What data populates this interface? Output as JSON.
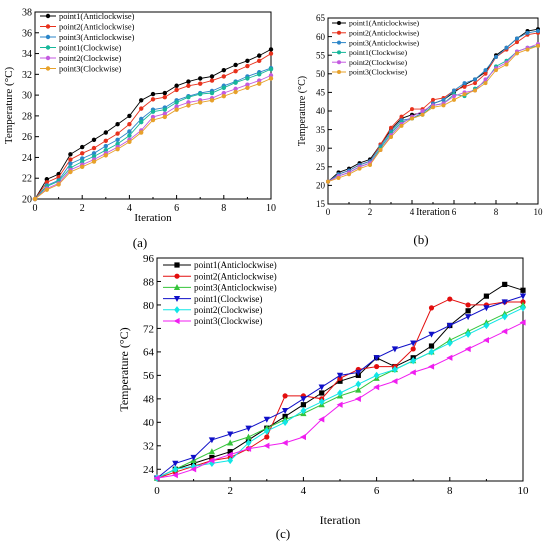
{
  "colors": {
    "s1": "#000000",
    "s2": "#e8311c",
    "s3": "#2b86c9",
    "s4": "#16b79a",
    "s5": "#c45ae0",
    "s6": "#e7a12a",
    "c_s1": "#000000",
    "c_s2": "#e30e0e",
    "c_s3": "#35c43a",
    "c_s4": "#1010c8",
    "c_s5": "#11e6e6",
    "c_s6": "#f01ef0"
  },
  "chart_data": [
    {
      "panel_label": "(a)",
      "type": "line",
      "xlabel": "Iteration",
      "ylabel": "Temperature (°C)",
      "xlim": [
        0,
        10
      ],
      "ylim": [
        20,
        38
      ],
      "xticks": [
        0,
        2,
        4,
        6,
        8,
        10
      ],
      "yticks": [
        20,
        22,
        24,
        26,
        28,
        30,
        32,
        34,
        36,
        38
      ],
      "grid": false,
      "legend_position": "top-left",
      "x": [
        0,
        0.5,
        1,
        1.5,
        2,
        2.5,
        3,
        3.5,
        4,
        4.5,
        5,
        5.5,
        6,
        6.5,
        7,
        7.5,
        8,
        8.5,
        9,
        9.5,
        10
      ],
      "series": [
        {
          "name": "point1(Anticlockwise)",
          "values": [
            20.0,
            21.9,
            22.4,
            24.3,
            25.0,
            25.7,
            26.4,
            27.2,
            28.0,
            29.5,
            30.1,
            30.2,
            30.9,
            31.3,
            31.6,
            31.8,
            32.4,
            32.9,
            33.3,
            33.8,
            34.4
          ]
        },
        {
          "name": "point2(Anticlockwise)",
          "values": [
            20.0,
            21.6,
            22.1,
            23.8,
            24.4,
            24.9,
            25.6,
            26.3,
            27.2,
            28.7,
            29.6,
            29.8,
            30.5,
            30.9,
            31.1,
            31.4,
            31.8,
            32.3,
            32.8,
            33.3,
            34.0
          ]
        },
        {
          "name": "point3(Anticlockwise)",
          "values": [
            20.0,
            21.3,
            21.8,
            23.4,
            23.9,
            24.4,
            25.1,
            25.7,
            26.5,
            27.7,
            28.6,
            28.8,
            29.5,
            29.9,
            30.2,
            30.4,
            30.9,
            31.3,
            31.8,
            32.2,
            32.6
          ]
        },
        {
          "name": "point1(Clockwise)",
          "values": [
            20.0,
            21.2,
            21.7,
            23.0,
            23.6,
            24.1,
            24.7,
            25.3,
            26.1,
            27.4,
            28.4,
            28.6,
            29.3,
            29.8,
            30.1,
            30.2,
            30.7,
            31.2,
            31.6,
            32.0,
            32.5
          ]
        },
        {
          "name": "point2(Clockwise)",
          "values": [
            20.0,
            21.0,
            21.5,
            22.8,
            23.3,
            23.8,
            24.4,
            25.0,
            25.7,
            26.6,
            27.9,
            28.2,
            28.9,
            29.3,
            29.5,
            29.7,
            30.2,
            30.6,
            31.0,
            31.4,
            31.9
          ]
        },
        {
          "name": "point3(Clockwise)",
          "values": [
            20.0,
            20.9,
            21.4,
            22.6,
            23.1,
            23.6,
            24.2,
            24.8,
            25.5,
            26.4,
            27.6,
            27.9,
            28.6,
            29.0,
            29.3,
            29.5,
            29.9,
            30.3,
            30.7,
            31.1,
            31.6
          ]
        }
      ]
    },
    {
      "panel_label": "(b)",
      "type": "line",
      "xlabel": "Iteration",
      "ylabel": "Temperature (°C)",
      "xlim": [
        0,
        10
      ],
      "ylim": [
        15,
        65
      ],
      "xticks": [
        0,
        2,
        4,
        6,
        8,
        10
      ],
      "yticks": [
        15,
        20,
        25,
        30,
        35,
        40,
        45,
        50,
        55,
        60,
        65
      ],
      "grid": false,
      "legend_position": "top-left",
      "x": [
        0,
        0.5,
        1,
        1.5,
        2,
        2.5,
        3,
        3.5,
        4,
        4.5,
        5,
        5.5,
        6,
        6.5,
        7,
        7.5,
        8,
        8.5,
        9,
        9.5,
        10
      ],
      "series": [
        {
          "name": "point1(Anticlockwise)",
          "values": [
            21.0,
            23.5,
            24.5,
            26.0,
            27.0,
            31.0,
            35.0,
            38.0,
            39.0,
            39.5,
            42.0,
            43.0,
            45.0,
            47.0,
            48.5,
            50.5,
            55.0,
            57.0,
            59.5,
            61.5,
            62.0
          ]
        },
        {
          "name": "point2(Anticlockwise)",
          "values": [
            21.0,
            23.0,
            24.0,
            25.5,
            26.5,
            31.0,
            35.5,
            38.5,
            40.5,
            40.5,
            43.0,
            43.5,
            45.5,
            46.5,
            47.5,
            50.0,
            54.5,
            56.5,
            58.5,
            60.5,
            61.0
          ]
        },
        {
          "name": "point3(Anticlockwise)",
          "values": [
            21.0,
            23.0,
            24.0,
            25.5,
            26.5,
            30.5,
            34.5,
            37.5,
            38.0,
            39.5,
            42.0,
            43.0,
            45.5,
            47.5,
            48.5,
            51.0,
            54.5,
            57.0,
            59.5,
            61.0,
            61.5
          ]
        },
        {
          "name": "point1(Clockwise)",
          "values": [
            21.0,
            22.5,
            23.5,
            25.0,
            26.0,
            30.0,
            34.0,
            37.0,
            38.0,
            39.0,
            41.5,
            42.0,
            44.5,
            44.0,
            46.0,
            48.0,
            52.0,
            53.5,
            56.0,
            57.0,
            57.5
          ]
        },
        {
          "name": "point2(Clockwise)",
          "values": [
            21.0,
            22.5,
            23.5,
            25.0,
            26.0,
            29.5,
            33.5,
            36.5,
            38.5,
            40.0,
            41.5,
            42.0,
            44.0,
            45.0,
            45.5,
            48.5,
            51.5,
            53.0,
            56.0,
            57.0,
            58.0
          ]
        },
        {
          "name": "point3(Clockwise)",
          "values": [
            21.0,
            22.0,
            23.0,
            24.5,
            25.5,
            29.5,
            33.0,
            36.0,
            38.0,
            39.0,
            41.0,
            41.5,
            43.0,
            44.5,
            45.5,
            47.5,
            51.0,
            52.5,
            55.5,
            56.5,
            57.5
          ]
        }
      ]
    },
    {
      "panel_label": "(c)",
      "type": "line",
      "xlabel": "Iteration",
      "ylabel": "Temperature (°C)",
      "xlim": [
        0,
        10
      ],
      "ylim": [
        20,
        96
      ],
      "xticks": [
        0,
        2,
        4,
        6,
        8,
        10
      ],
      "yticks": [
        24,
        32,
        40,
        48,
        56,
        64,
        72,
        80,
        88,
        96
      ],
      "grid": false,
      "legend_position": "top-left",
      "x": [
        0,
        0.5,
        1,
        1.5,
        2,
        2.5,
        3,
        3.5,
        4,
        4.5,
        5,
        5.5,
        6,
        6.5,
        7,
        7.5,
        8,
        8.5,
        9,
        9.5,
        10
      ],
      "series": [
        {
          "name": "point1(Anticlockwise)",
          "values": [
            21,
            24,
            26,
            28,
            30,
            34,
            38,
            42,
            46,
            50,
            54,
            56,
            62,
            59,
            62,
            66,
            73,
            78,
            83,
            87,
            85
          ]
        },
        {
          "name": "point2(Anticlockwise)",
          "values": [
            21,
            23,
            25,
            27,
            28,
            31,
            35,
            49,
            49,
            48,
            55,
            58,
            59,
            59,
            65,
            79,
            82,
            80,
            80,
            81,
            81
          ]
        },
        {
          "name": "point3(Anticlockwise)",
          "values": [
            21,
            24,
            27,
            30,
            33,
            35,
            38,
            41,
            43,
            46,
            49,
            51,
            55,
            58,
            61,
            64,
            68,
            71,
            74,
            77,
            80
          ]
        },
        {
          "name": "point1(Clockwise)",
          "values": [
            21,
            26,
            28,
            34,
            36,
            38,
            41,
            44,
            48,
            52,
            56,
            57,
            62,
            65,
            67,
            70,
            73,
            76,
            79,
            81,
            83
          ]
        },
        {
          "name": "point2(Clockwise)",
          "values": [
            21,
            24,
            25,
            26,
            27,
            33,
            37,
            40,
            44,
            47,
            50,
            53,
            56,
            58,
            61,
            64,
            67,
            70,
            73,
            76,
            79
          ]
        },
        {
          "name": "point3(Clockwise)",
          "values": [
            21,
            22,
            24,
            27,
            29,
            31,
            32,
            33,
            35,
            41,
            46,
            48,
            52,
            54,
            57,
            59,
            62,
            65,
            68,
            71,
            74
          ]
        }
      ]
    }
  ]
}
